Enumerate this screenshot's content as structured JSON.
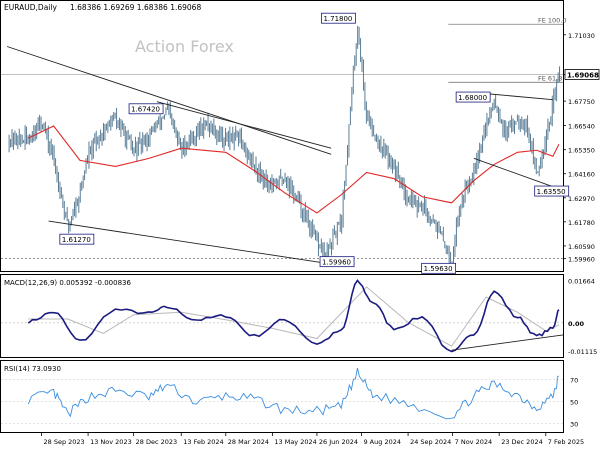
{
  "header": {
    "symbol": "EURAUD,Daily",
    "ohlc": "1.68386 1.69269 1.68386 1.69068"
  },
  "watermark": "Action Forex",
  "chart_data": [
    {
      "type": "line",
      "panel": "price",
      "ylim": [
        1.5935,
        1.727
      ],
      "y_ticks": [
        "1.71030",
        "1.69068",
        "1.67750",
        "1.66540",
        "1.65350",
        "1.64160",
        "1.62970",
        "1.61780",
        "1.60590",
        "1.59960"
      ],
      "y_tick_values": [
        1.7103,
        1.69068,
        1.6775,
        1.6654,
        1.6535,
        1.6416,
        1.6297,
        1.6178,
        1.6059,
        1.5996
      ],
      "current_price": "1.69068",
      "annotations": [
        {
          "label": "1.71800",
          "value": 1.718,
          "date": "2024-08-05"
        },
        {
          "label": "1.67420",
          "value": 1.6742,
          "date": "2024-01-30"
        },
        {
          "label": "1.61270",
          "value": 1.6127,
          "date": "2023-10-24"
        },
        {
          "label": "1.59960",
          "value": 1.5996,
          "date": "2024-07-05"
        },
        {
          "label": "1.68000",
          "value": 1.68,
          "date": "2024-12-18"
        },
        {
          "label": "1.63550",
          "value": 1.6355,
          "date": "2025-01-29"
        },
        {
          "label": "1.59630",
          "value": 1.5963,
          "date": "2024-11-06"
        }
      ],
      "fib_lines": [
        {
          "label": "FE 100.0",
          "value": 1.7155
        },
        {
          "label": "FE 61.8",
          "value": 1.6868
        }
      ],
      "x_ticks": [
        "28 Sep 2023",
        "13 Nov 2023",
        "28 Dec 2023",
        "13 Feb 2024",
        "28 Mar 2024",
        "13 May 2024",
        "26 Jun 2024",
        "9 Aug 2024",
        "24 Sep 2024",
        "7 Nov 2024",
        "23 Dec 2024",
        "7 Feb 2025"
      ],
      "series": [
        {
          "name": "EURAUD",
          "color": "#5a7d96",
          "style": "bars",
          "x": [
            "2023-09-15",
            "2023-09-28",
            "2023-10-10",
            "2023-10-24",
            "2023-11-05",
            "2023-11-13",
            "2023-11-27",
            "2023-12-10",
            "2023-12-28",
            "2024-01-12",
            "2024-01-30",
            "2024-02-13",
            "2024-02-28",
            "2024-03-10",
            "2024-03-28",
            "2024-04-10",
            "2024-04-25",
            "2024-05-13",
            "2024-05-25",
            "2024-06-10",
            "2024-06-26",
            "2024-07-05",
            "2024-07-20",
            "2024-08-05",
            "2024-08-14",
            "2024-08-28",
            "2024-09-10",
            "2024-09-24",
            "2024-10-08",
            "2024-10-20",
            "2024-11-06",
            "2024-11-14",
            "2024-11-28",
            "2024-12-10",
            "2024-12-18",
            "2024-12-30",
            "2025-01-10",
            "2025-01-20",
            "2025-01-29",
            "2025-02-07",
            "2025-02-14",
            "2025-02-20"
          ],
          "values": [
            1.6585,
            1.6682,
            1.6485,
            1.6152,
            1.6325,
            1.6505,
            1.6622,
            1.6692,
            1.6528,
            1.6602,
            1.6732,
            1.6532,
            1.6622,
            1.6662,
            1.6582,
            1.6592,
            1.6452,
            1.6352,
            1.6402,
            1.6252,
            1.6072,
            1.6012,
            1.6182,
            1.7152,
            1.6702,
            1.6552,
            1.6452,
            1.6302,
            1.6252,
            1.6182,
            1.5982,
            1.6252,
            1.6452,
            1.6652,
            1.6782,
            1.6602,
            1.6702,
            1.6652,
            1.6402,
            1.6602,
            1.6752,
            1.6912
          ]
        },
        {
          "name": "MA",
          "color": "#e02828",
          "style": "line",
          "x": [
            "2023-09-15",
            "2023-10-10",
            "2023-11-05",
            "2023-12-10",
            "2024-01-12",
            "2024-02-13",
            "2024-03-28",
            "2024-04-25",
            "2024-05-25",
            "2024-06-26",
            "2024-07-20",
            "2024-08-14",
            "2024-09-10",
            "2024-10-08",
            "2024-11-06",
            "2024-11-28",
            "2024-12-18",
            "2025-01-10",
            "2025-01-29",
            "2025-02-14",
            "2025-02-20"
          ],
          "values": [
            1.6592,
            1.6652,
            1.6482,
            1.6452,
            1.6492,
            1.6542,
            1.6522,
            1.6432,
            1.6322,
            1.6222,
            1.6312,
            1.6422,
            1.6392,
            1.6302,
            1.6272,
            1.6382,
            1.6462,
            1.6522,
            1.6532,
            1.6502,
            1.6562
          ]
        }
      ],
      "trendlines": [
        {
          "from": [
            "2023-08-25",
            1.7045
          ],
          "to": [
            "2024-07-10",
            1.6512
          ]
        },
        {
          "from": [
            "2023-10-05",
            1.6182
          ],
          "to": [
            "2024-07-20",
            1.5962
          ]
        },
        {
          "from": [
            "2024-01-20",
            1.6772
          ],
          "to": [
            "2024-07-10",
            1.6542
          ]
        },
        {
          "from": [
            "2024-12-10",
            1.6812
          ],
          "to": [
            "2025-02-14",
            1.6782
          ]
        },
        {
          "from": [
            "2024-11-28",
            1.6492
          ],
          "to": [
            "2025-02-14",
            1.6352
          ]
        }
      ]
    },
    {
      "type": "line",
      "panel": "macd",
      "title": "MACD(12,26,9) 0.005392 -0.000836",
      "ylim": [
        -0.0135,
        0.0185
      ],
      "y_ticks": [
        "0.01664",
        "0.00",
        "-0.01115"
      ],
      "y_tick_values": [
        0.01664,
        0.0,
        -0.01115
      ],
      "series": [
        {
          "name": "MACD",
          "color": "#1a1a80",
          "x": [
            "2023-09-15",
            "2023-10-10",
            "2023-11-05",
            "2023-12-10",
            "2024-01-12",
            "2024-01-30",
            "2024-02-28",
            "2024-03-28",
            "2024-04-25",
            "2024-05-25",
            "2024-06-26",
            "2024-07-20",
            "2024-08-05",
            "2024-08-20",
            "2024-09-10",
            "2024-10-08",
            "2024-11-06",
            "2024-11-28",
            "2024-12-18",
            "2025-01-10",
            "2025-01-29",
            "2025-02-14",
            "2025-02-20"
          ],
          "values": [
            0.0005,
            0.0042,
            -0.0072,
            0.0052,
            0.0038,
            0.0062,
            0.0012,
            0.0028,
            -0.0052,
            0.0012,
            -0.0082,
            -0.0032,
            0.0162,
            0.0082,
            -0.0022,
            0.0022,
            -0.0118,
            -0.0042,
            0.0122,
            0.0022,
            -0.0052,
            -0.0022,
            0.0052
          ]
        },
        {
          "name": "Signal",
          "color": "#b8b8b8",
          "x": [
            "2023-09-15",
            "2023-10-24",
            "2023-11-28",
            "2023-12-28",
            "2024-02-13",
            "2024-03-28",
            "2024-05-13",
            "2024-06-26",
            "2024-08-14",
            "2024-09-24",
            "2024-11-06",
            "2024-12-10",
            "2025-01-10",
            "2025-02-07",
            "2025-02-20"
          ],
          "values": [
            0.0015,
            0.0015,
            -0.0042,
            0.0032,
            0.0042,
            0.0012,
            -0.0022,
            -0.0062,
            0.0142,
            0.0002,
            -0.0092,
            0.0102,
            0.0042,
            -0.0032,
            -0.0008
          ]
        }
      ],
      "trendlines": [
        {
          "from": [
            "2024-11-06",
            -0.0108
          ],
          "to": [
            "2025-02-20",
            -0.0048
          ]
        }
      ]
    },
    {
      "type": "line",
      "panel": "rsi",
      "title": "RSI(14) 73.0930",
      "ylim": [
        22,
        86
      ],
      "y_ticks": [
        "70",
        "50",
        "30"
      ],
      "y_tick_values": [
        70,
        50,
        30
      ],
      "series": [
        {
          "name": "RSI",
          "color": "#3a8ede",
          "x": [
            "2023-09-15",
            "2023-10-10",
            "2023-10-24",
            "2023-11-13",
            "2023-12-10",
            "2024-01-12",
            "2024-01-30",
            "2024-02-28",
            "2024-03-28",
            "2024-04-25",
            "2024-05-25",
            "2024-06-26",
            "2024-07-20",
            "2024-08-05",
            "2024-08-20",
            "2024-09-24",
            "2024-11-06",
            "2024-11-28",
            "2024-12-18",
            "2025-01-10",
            "2025-01-29",
            "2025-02-14",
            "2025-02-20"
          ],
          "values": [
            52,
            58,
            38,
            54,
            60,
            54,
            65,
            49,
            55,
            52,
            42,
            41,
            45,
            76,
            56,
            48,
            36,
            55,
            66,
            56,
            44,
            55,
            73
          ]
        }
      ]
    }
  ]
}
